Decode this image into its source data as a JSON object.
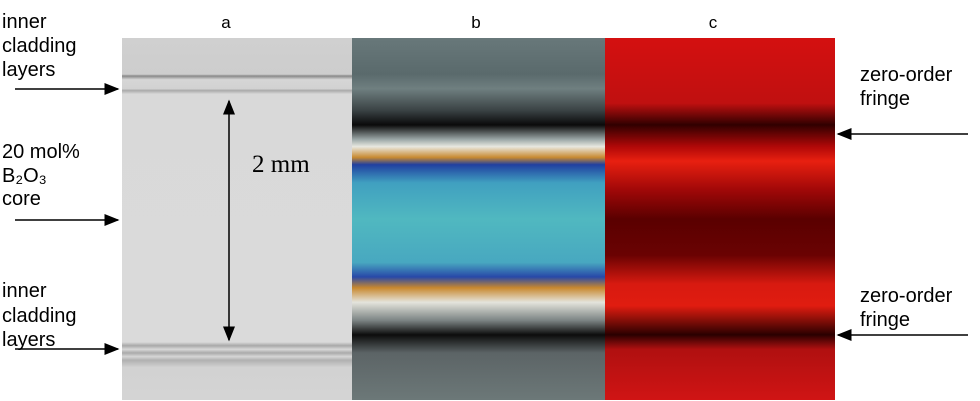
{
  "panels": [
    "a",
    "b",
    "c"
  ],
  "left_labels": [
    {
      "lines": [
        "inner",
        "cladding",
        "layers"
      ]
    },
    {
      "lines": [
        "20 mol%",
        "B₂O₃",
        "core"
      ]
    },
    {
      "lines": [
        "inner",
        "cladding",
        "layers"
      ]
    }
  ],
  "scale_label": "2 mm",
  "right_labels": [
    {
      "lines": [
        "zero-order",
        "fringe"
      ]
    },
    {
      "lines": [
        "zero-order",
        "fringe"
      ]
    }
  ]
}
